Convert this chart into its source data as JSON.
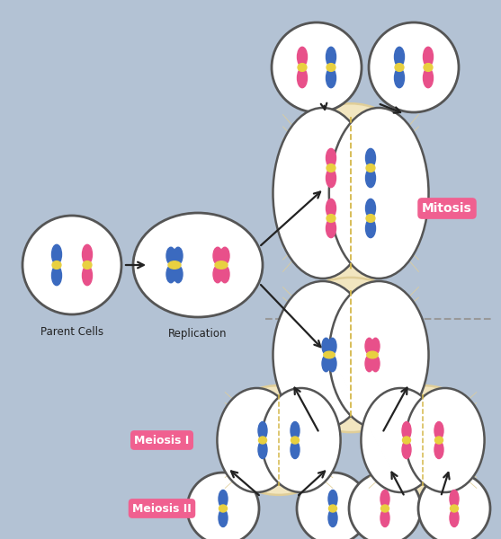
{
  "bg_color": "#b3c2d4",
  "cell_face": "#ffffff",
  "cell_edge": "#555555",
  "blue_chrom": "#3b6abf",
  "pink_chrom": "#e8508a",
  "centromere_color": "#e8d040",
  "spindle_color": "#f2e6c0",
  "spindle_edge": "#e0ce98",
  "label_box_color": "#f06090",
  "label_text_color": "#ffffff",
  "arrow_color": "#222222",
  "dashed_color": "#999999",
  "parent_label": "Parent Cells",
  "replication_label": "Replication",
  "mitosis_label": "Mitosis",
  "meiosis1_label": "Meiosis I",
  "meiosis2_label": "Meiosis II",
  "figw": 5.57,
  "figh": 6.0,
  "dpi": 100
}
